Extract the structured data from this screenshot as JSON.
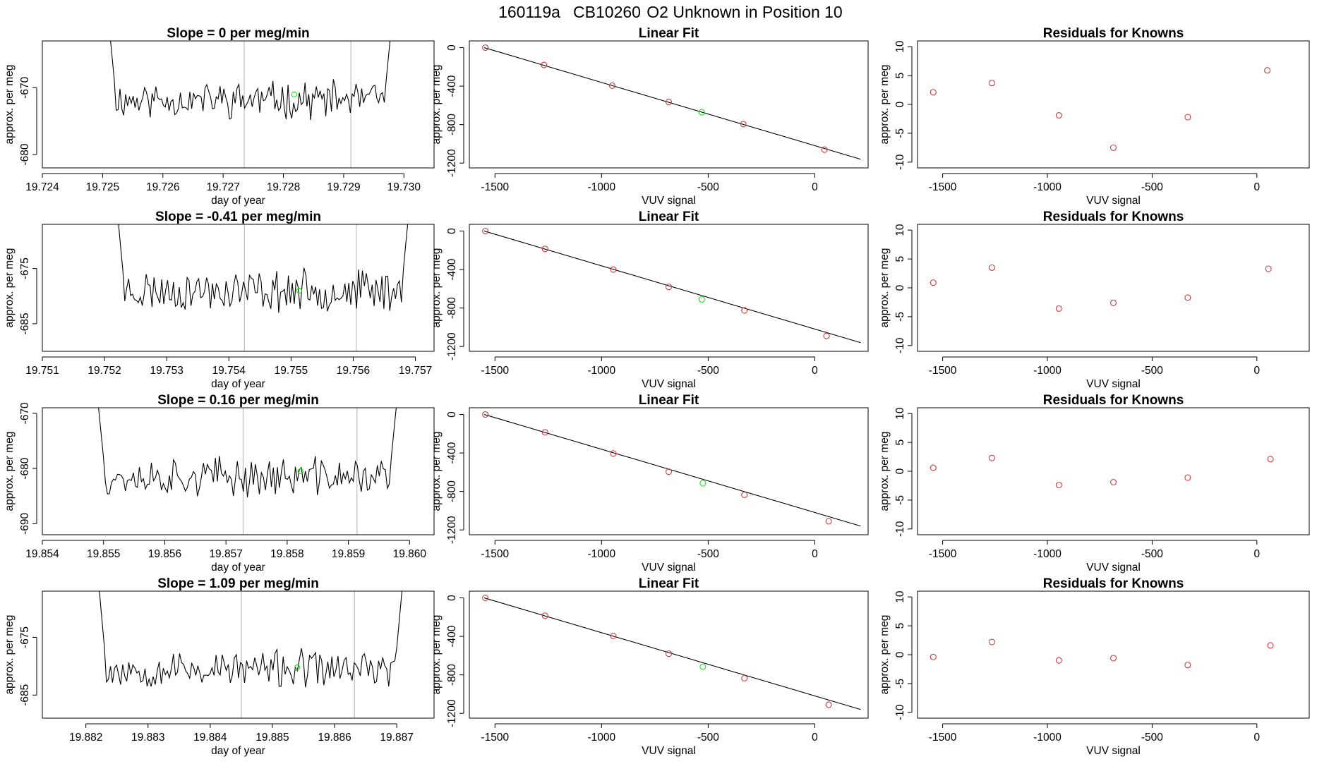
{
  "figure": {
    "title_run": "160119a",
    "title_cylinder": "CB10260",
    "title_desc": "O2 Unknown in Position  10"
  },
  "colors": {
    "line": "#000000",
    "known": "#cd3b3b",
    "unknown": "#22e022",
    "frame": "#000000",
    "vline": "#bdbdbd"
  },
  "chart_data": [
    {
      "type": "line",
      "title": "Slope =  0  per meg/min",
      "xlabel": "day of year",
      "ylabel": "approx. per meg",
      "xlim": [
        19.724,
        19.7305
      ],
      "ylim": [
        -682,
        -663
      ],
      "xticks": [
        19.724,
        19.725,
        19.726,
        19.727,
        19.728,
        19.729,
        19.73
      ],
      "xtick_labels": [
        "19.724",
        "19.725",
        "19.726",
        "19.727",
        "19.728",
        "19.729",
        "19.730"
      ],
      "yticks": [
        -680,
        -670
      ],
      "ytick_labels": [
        "-680",
        "-670"
      ],
      "x_start": 19.7251,
      "x_end": 19.7298,
      "n": 150,
      "base": -671.8,
      "amp": 2.2,
      "seed": 11,
      "start_y": -660,
      "end_y": -660,
      "vlines": [
        19.72735,
        19.72912
      ],
      "unknown_marker": {
        "x": 19.72818,
        "y": -671.0
      }
    },
    {
      "type": "scatter",
      "title": "Linear Fit",
      "xlabel": "VUV signal",
      "ylabel": "approx. per meg",
      "xlim": [
        -1620,
        250
      ],
      "ylim": [
        -1250,
        70
      ],
      "xticks": [
        -1500,
        -1000,
        -500,
        0
      ],
      "xtick_labels": [
        "-1500",
        "-1000",
        "-500",
        "0"
      ],
      "yticks": [
        0,
        -400,
        -800,
        -1200
      ],
      "ytick_labels": [
        "0",
        "-400",
        "-800",
        "-1200"
      ],
      "fit_line": {
        "x0": -1550,
        "y0": 0,
        "x1": 215,
        "y1": -1160
      },
      "known_points": [
        [
          -1545,
          0
        ],
        [
          -1270,
          -180
        ],
        [
          -950,
          -395
        ],
        [
          -685,
          -565
        ],
        [
          -335,
          -795
        ],
        [
          45,
          -1060
        ]
      ],
      "unknown_point": [
        -530,
        -672
      ]
    },
    {
      "type": "scatter",
      "title": "Residuals for Knowns",
      "xlabel": "VUV signal",
      "ylabel": "approx. per meg",
      "xlim": [
        -1620,
        250
      ],
      "ylim": [
        -11,
        11
      ],
      "xticks": [
        -1500,
        -1000,
        -500,
        0
      ],
      "xtick_labels": [
        "-1500",
        "-1000",
        "-500",
        "0"
      ],
      "yticks": [
        -10,
        -5,
        0,
        5,
        10
      ],
      "ytick_labels": [
        "-10",
        "-5",
        "0",
        "5",
        "10"
      ],
      "points": [
        [
          -1545,
          2.1
        ],
        [
          -1265,
          3.7
        ],
        [
          -945,
          -1.9
        ],
        [
          -685,
          -7.5
        ],
        [
          -330,
          -2.2
        ],
        [
          50,
          5.9
        ]
      ]
    },
    {
      "type": "line",
      "title": "Slope =  -0.41  per meg/min",
      "xlabel": "day of year",
      "ylabel": "approx. per meg",
      "xlim": [
        19.751,
        19.7573
      ],
      "ylim": [
        -690,
        -667
      ],
      "xticks": [
        19.751,
        19.752,
        19.753,
        19.754,
        19.755,
        19.756,
        19.757
      ],
      "xtick_labels": [
        "19.751",
        "19.752",
        "19.753",
        "19.754",
        "19.755",
        "19.756",
        "19.757"
      ],
      "yticks": [
        -685,
        -675
      ],
      "ytick_labels": [
        "-685",
        "-675"
      ],
      "x_start": 19.7522,
      "x_end": 19.7569,
      "n": 150,
      "base": -679.0,
      "amp": 3.0,
      "seed": 23,
      "start_y": -664,
      "end_y": -664,
      "vlines": [
        19.75425,
        19.75605
      ],
      "unknown_marker": {
        "x": 19.75513,
        "y": -679.0
      }
    },
    {
      "type": "scatter",
      "title": "Linear Fit",
      "xlabel": "VUV signal",
      "ylabel": "approx. per meg",
      "xlim": [
        -1620,
        250
      ],
      "ylim": [
        -1250,
        70
      ],
      "xticks": [
        -1500,
        -1000,
        -500,
        0
      ],
      "xtick_labels": [
        "-1500",
        "-1000",
        "-500",
        "0"
      ],
      "yticks": [
        0,
        -400,
        -800,
        -1200
      ],
      "ytick_labels": [
        "0",
        "-400",
        "-800",
        "-1200"
      ],
      "fit_line": {
        "x0": -1550,
        "y0": 0,
        "x1": 215,
        "y1": -1160
      },
      "known_points": [
        [
          -1545,
          0
        ],
        [
          -1265,
          -185
        ],
        [
          -945,
          -400
        ],
        [
          -685,
          -580
        ],
        [
          -330,
          -825
        ],
        [
          55,
          -1090
        ]
      ],
      "unknown_point": [
        -530,
        -710
      ]
    },
    {
      "type": "scatter",
      "title": "Residuals for Knowns",
      "xlabel": "VUV signal",
      "ylabel": "approx. per meg",
      "xlim": [
        -1620,
        250
      ],
      "ylim": [
        -11,
        11
      ],
      "xticks": [
        -1500,
        -1000,
        -500,
        0
      ],
      "xtick_labels": [
        "-1500",
        "-1000",
        "-500",
        "0"
      ],
      "yticks": [
        -10,
        -5,
        0,
        5,
        10
      ],
      "ytick_labels": [
        "-10",
        "-5",
        "0",
        "5",
        "10"
      ],
      "points": [
        [
          -1545,
          0.9
        ],
        [
          -1265,
          3.5
        ],
        [
          -945,
          -3.6
        ],
        [
          -685,
          -2.6
        ],
        [
          -330,
          -1.7
        ],
        [
          55,
          3.3
        ]
      ]
    },
    {
      "type": "line",
      "title": "Slope =  0.16  per meg/min",
      "xlabel": "day of year",
      "ylabel": "approx. per meg",
      "xlim": [
        19.854,
        19.8604
      ],
      "ylim": [
        -692,
        -669
      ],
      "xticks": [
        19.854,
        19.855,
        19.856,
        19.857,
        19.858,
        19.859,
        19.86
      ],
      "xtick_labels": [
        "19.854",
        "19.855",
        "19.856",
        "19.857",
        "19.858",
        "19.859",
        "19.860"
      ],
      "yticks": [
        -690,
        -680,
        -670
      ],
      "ytick_labels": [
        "-690",
        "-680",
        "-670"
      ],
      "x_start": 19.8549,
      "x_end": 19.8598,
      "n": 150,
      "base": -681.5,
      "amp": 2.8,
      "seed": 37,
      "start_y": -667,
      "end_y": -667,
      "vlines": [
        19.85728,
        19.85914
      ],
      "unknown_marker": {
        "x": 19.85822,
        "y": -680.5
      }
    },
    {
      "type": "scatter",
      "title": "Linear Fit",
      "xlabel": "VUV signal",
      "ylabel": "approx. per meg",
      "xlim": [
        -1620,
        250
      ],
      "ylim": [
        -1250,
        70
      ],
      "xticks": [
        -1500,
        -1000,
        -500,
        0
      ],
      "xtick_labels": [
        "-1500",
        "-1000",
        "-500",
        "0"
      ],
      "yticks": [
        0,
        -400,
        -800,
        -1200
      ],
      "ytick_labels": [
        "0",
        "-400",
        "-800",
        "-1200"
      ],
      "fit_line": {
        "x0": -1550,
        "y0": 0,
        "x1": 215,
        "y1": -1160
      },
      "known_points": [
        [
          -1545,
          0
        ],
        [
          -1265,
          -185
        ],
        [
          -945,
          -405
        ],
        [
          -685,
          -595
        ],
        [
          -330,
          -835
        ],
        [
          65,
          -1110
        ]
      ],
      "unknown_point": [
        -525,
        -715
      ]
    },
    {
      "type": "scatter",
      "title": "Residuals for Knowns",
      "xlabel": "VUV signal",
      "ylabel": "approx. per meg",
      "xlim": [
        -1620,
        250
      ],
      "ylim": [
        -11,
        11
      ],
      "xticks": [
        -1500,
        -1000,
        -500,
        0
      ],
      "xtick_labels": [
        "-1500",
        "-1000",
        "-500",
        "0"
      ],
      "yticks": [
        -10,
        -5,
        0,
        5,
        10
      ],
      "ytick_labels": [
        "-10",
        "-5",
        "0",
        "5",
        "10"
      ],
      "points": [
        [
          -1545,
          0.6
        ],
        [
          -1265,
          2.3
        ],
        [
          -945,
          -2.4
        ],
        [
          -685,
          -1.9
        ],
        [
          -330,
          -1.1
        ],
        [
          65,
          2.1
        ]
      ]
    },
    {
      "type": "line",
      "title": "Slope =  1.09  per meg/min",
      "xlabel": "day of year",
      "ylabel": "approx. per meg",
      "xlim": [
        19.8813,
        19.8876
      ],
      "ylim": [
        -689,
        -667
      ],
      "xticks": [
        19.882,
        19.883,
        19.884,
        19.885,
        19.886,
        19.887
      ],
      "xtick_labels": [
        "19.882",
        "19.883",
        "19.884",
        "19.885",
        "19.886",
        "19.887"
      ],
      "yticks": [
        -685,
        -675
      ],
      "ytick_labels": [
        "-685",
        "-675"
      ],
      "x_start": 19.8822,
      "x_end": 19.8871,
      "n": 150,
      "base": -680.5,
      "amp": 2.6,
      "seed": 53,
      "start_y": -665,
      "end_y": -665,
      "vlines": [
        19.8845,
        19.88632
      ],
      "unknown_marker": {
        "x": 19.8854,
        "y": -680.2
      }
    },
    {
      "type": "scatter",
      "title": "Linear Fit",
      "xlabel": "VUV signal",
      "ylabel": "approx. per meg",
      "xlim": [
        -1620,
        250
      ],
      "ylim": [
        -1250,
        70
      ],
      "xticks": [
        -1500,
        -1000,
        -500,
        0
      ],
      "xtick_labels": [
        "-1500",
        "-1000",
        "-500",
        "0"
      ],
      "yticks": [
        0,
        -400,
        -800,
        -1200
      ],
      "ytick_labels": [
        "0",
        "-400",
        "-800",
        "-1200"
      ],
      "fit_line": {
        "x0": -1550,
        "y0": 0,
        "x1": 215,
        "y1": -1160
      },
      "known_points": [
        [
          -1545,
          0
        ],
        [
          -1265,
          -185
        ],
        [
          -945,
          -395
        ],
        [
          -685,
          -580
        ],
        [
          -330,
          -835
        ],
        [
          65,
          -1110
        ]
      ],
      "unknown_point": [
        -525,
        -715
      ]
    },
    {
      "type": "scatter",
      "title": "Residuals for Knowns",
      "xlabel": "VUV signal",
      "ylabel": "approx. per meg",
      "xlim": [
        -1620,
        250
      ],
      "ylim": [
        -11,
        11
      ],
      "xticks": [
        -1500,
        -1000,
        -500,
        0
      ],
      "xtick_labels": [
        "-1500",
        "-1000",
        "-500",
        "0"
      ],
      "yticks": [
        -10,
        -5,
        0,
        5,
        10
      ],
      "ytick_labels": [
        "-10",
        "-5",
        "0",
        "5",
        "10"
      ],
      "points": [
        [
          -1545,
          -0.4
        ],
        [
          -1265,
          2.2
        ],
        [
          -945,
          -1.0
        ],
        [
          -685,
          -0.6
        ],
        [
          -330,
          -1.8
        ],
        [
          65,
          1.6
        ]
      ]
    }
  ]
}
